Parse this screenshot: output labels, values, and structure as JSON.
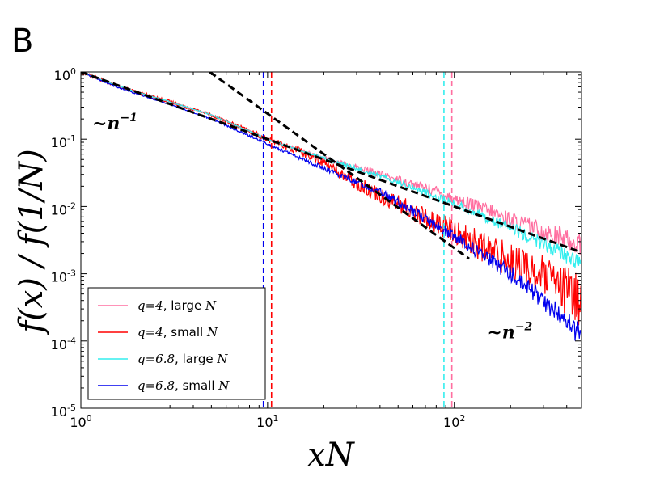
{
  "panel_label": "B",
  "chart_data": {
    "type": "line",
    "x_scale": "log",
    "y_scale": "log",
    "xlim": [
      1,
      480
    ],
    "ylim": [
      1e-05,
      1
    ],
    "xlabel": "xN",
    "ylabel": "f(x) / f(1/N)",
    "x_ticks": [
      {
        "value": 1,
        "base": "10",
        "exp": "0"
      },
      {
        "value": 10,
        "base": "10",
        "exp": "1"
      },
      {
        "value": 100,
        "base": "10",
        "exp": "2"
      }
    ],
    "y_ticks": [
      {
        "value": 1,
        "base": "10",
        "exp": "0"
      },
      {
        "value": 0.1,
        "base": "10",
        "exp": "-1"
      },
      {
        "value": 0.01,
        "base": "10",
        "exp": "-2"
      },
      {
        "value": 0.001,
        "base": "10",
        "exp": "-3"
      },
      {
        "value": 0.0001,
        "base": "10",
        "exp": "-4"
      },
      {
        "value": 1e-05,
        "base": "10",
        "exp": "-5"
      }
    ],
    "series": [
      {
        "name": "q=4, large N",
        "q": "q=4",
        "desc": ", large ",
        "nvar": "N",
        "color": "#ff6fa0",
        "noise": 0.07,
        "x": [
          1,
          1.5,
          2,
          3,
          5,
          10,
          20,
          35,
          50,
          80,
          100,
          150,
          200,
          300,
          480
        ],
        "y": [
          1,
          0.65,
          0.5,
          0.36,
          0.23,
          0.1,
          0.052,
          0.034,
          0.025,
          0.017,
          0.013,
          0.0088,
          0.0063,
          0.0043,
          0.0027
        ]
      },
      {
        "name": "q=4, small N",
        "q": "q=4",
        "desc": ", small ",
        "nvar": "N",
        "color": "#ff0000",
        "noise": 0.16,
        "x": [
          1,
          1.5,
          2,
          3,
          5,
          10,
          15,
          20,
          25,
          30,
          40,
          60,
          100,
          150,
          200,
          300,
          480
        ],
        "y": [
          1,
          0.65,
          0.5,
          0.36,
          0.23,
          0.1,
          0.065,
          0.045,
          0.03,
          0.022,
          0.015,
          0.0085,
          0.0042,
          0.0023,
          0.0016,
          0.0009,
          0.0004
        ]
      },
      {
        "name": "q=6.8, large N",
        "q": "q=6.8",
        "desc": ", large ",
        "nvar": "N",
        "color": "#33eeee",
        "noise": 0.05,
        "x": [
          1,
          1.5,
          2,
          3,
          5,
          10,
          20,
          35,
          50,
          80,
          100,
          150,
          200,
          300,
          480
        ],
        "y": [
          1,
          0.65,
          0.5,
          0.36,
          0.23,
          0.1,
          0.052,
          0.032,
          0.023,
          0.014,
          0.011,
          0.0068,
          0.0048,
          0.0028,
          0.0014
        ]
      },
      {
        "name": "q=6.8, small N",
        "q": "q=6.8",
        "desc": ", small ",
        "nvar": "N",
        "color": "#0000ee",
        "noise": 0.07,
        "x": [
          1,
          1.5,
          2,
          3,
          5,
          10,
          20,
          40,
          60,
          100,
          150,
          200,
          300,
          480
        ],
        "y": [
          1,
          0.62,
          0.47,
          0.33,
          0.2,
          0.085,
          0.037,
          0.0165,
          0.0085,
          0.0036,
          0.0017,
          0.001,
          0.0004,
          0.00012
        ]
      }
    ],
    "reference_lines": [
      {
        "label": "~n^-1",
        "x": [
          1,
          480
        ],
        "y": [
          1,
          0.00208
        ],
        "color": "#000000",
        "style": "dashed"
      },
      {
        "label": "~n^-2",
        "x": [
          4.9,
          120
        ],
        "y": [
          1,
          0.00167
        ],
        "color": "#000000",
        "style": "dashed"
      }
    ],
    "vertical_lines": [
      {
        "x": 9.5,
        "color": "#0000ee"
      },
      {
        "x": 10.5,
        "color": "#ff0000"
      },
      {
        "x": 88,
        "color": "#33eeee"
      },
      {
        "x": 97,
        "color": "#ff6fa0"
      }
    ],
    "annotations": [
      {
        "id": "n1",
        "text": "~n",
        "exp": "−1",
        "anchor_x": 1.15,
        "anchor_y": 0.14
      },
      {
        "id": "n2",
        "text": "~n",
        "exp": "−2",
        "anchor_x": 150,
        "anchor_y": 0.00011
      }
    ],
    "legend_position": "lower-left"
  }
}
